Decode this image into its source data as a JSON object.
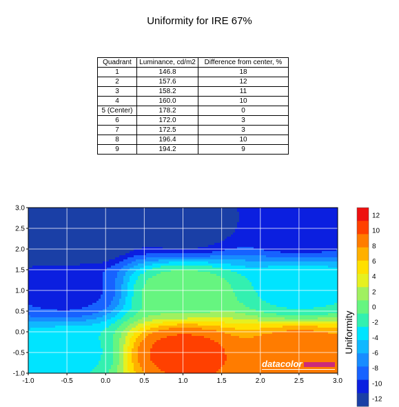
{
  "title": "Uniformity for IRE 67%",
  "table": {
    "headers": [
      "Quadrant",
      "Luminance, cd/m2",
      "Difference from center, %"
    ],
    "rows": [
      [
        "1",
        "146.8",
        "18"
      ],
      [
        "2",
        "157.6",
        "12"
      ],
      [
        "3",
        "158.2",
        "11"
      ],
      [
        "4",
        "160.0",
        "10"
      ],
      [
        "5 (Center)",
        "178.2",
        "0"
      ],
      [
        "6",
        "172.0",
        "3"
      ],
      [
        "7",
        "172.5",
        "3"
      ],
      [
        "8",
        "196.4",
        "10"
      ],
      [
        "9",
        "194.2",
        "9"
      ]
    ]
  },
  "chart_data": {
    "type": "heatmap",
    "title": "Uniformity for IRE 67%",
    "x_ticks": [
      "-1.0",
      "-0.5",
      "0.0",
      "0.5",
      "1.0",
      "1.5",
      "2.0",
      "2.5",
      "3.0"
    ],
    "y_ticks": [
      "3.0",
      "2.5",
      "2.0",
      "1.5",
      "1.0",
      "0.5",
      "0.0",
      "-0.5",
      "-1.0"
    ],
    "xlim": [
      -1.0,
      3.0
    ],
    "ylim": [
      -1.0,
      3.0
    ],
    "grid": true,
    "colorbar": {
      "label": "Uniformity",
      "ticks": [
        "12",
        "10",
        "8",
        "6",
        "4",
        "2",
        "0",
        "-2",
        "-4",
        "-6",
        "-8",
        "-10",
        "-12"
      ],
      "range": [
        -13,
        13
      ]
    },
    "grid_points": [
      {
        "x": -0.5,
        "y": 2.5,
        "value": -18
      },
      {
        "x": 1.0,
        "y": 2.5,
        "value": -12
      },
      {
        "x": 2.5,
        "y": 2.5,
        "value": -11
      },
      {
        "x": -0.5,
        "y": 1.0,
        "value": -10
      },
      {
        "x": 1.0,
        "y": 1.0,
        "value": 0
      },
      {
        "x": 2.5,
        "y": 1.0,
        "value": -3
      },
      {
        "x": -0.5,
        "y": -0.5,
        "value": -3
      },
      {
        "x": 1.0,
        "y": -0.5,
        "value": 10
      },
      {
        "x": 2.5,
        "y": -0.5,
        "value": 9
      }
    ]
  },
  "watermark": "datacolor",
  "colors": {
    "scale": [
      "#1a3fa6",
      "#0b1fe0",
      "#1762ff",
      "#178cff",
      "#10b8ff",
      "#00e4ff",
      "#33f0b0",
      "#66f580",
      "#a0f060",
      "#e6f020",
      "#ffe000",
      "#ffb000",
      "#ff7c00",
      "#ff4000",
      "#ee1010"
    ]
  }
}
